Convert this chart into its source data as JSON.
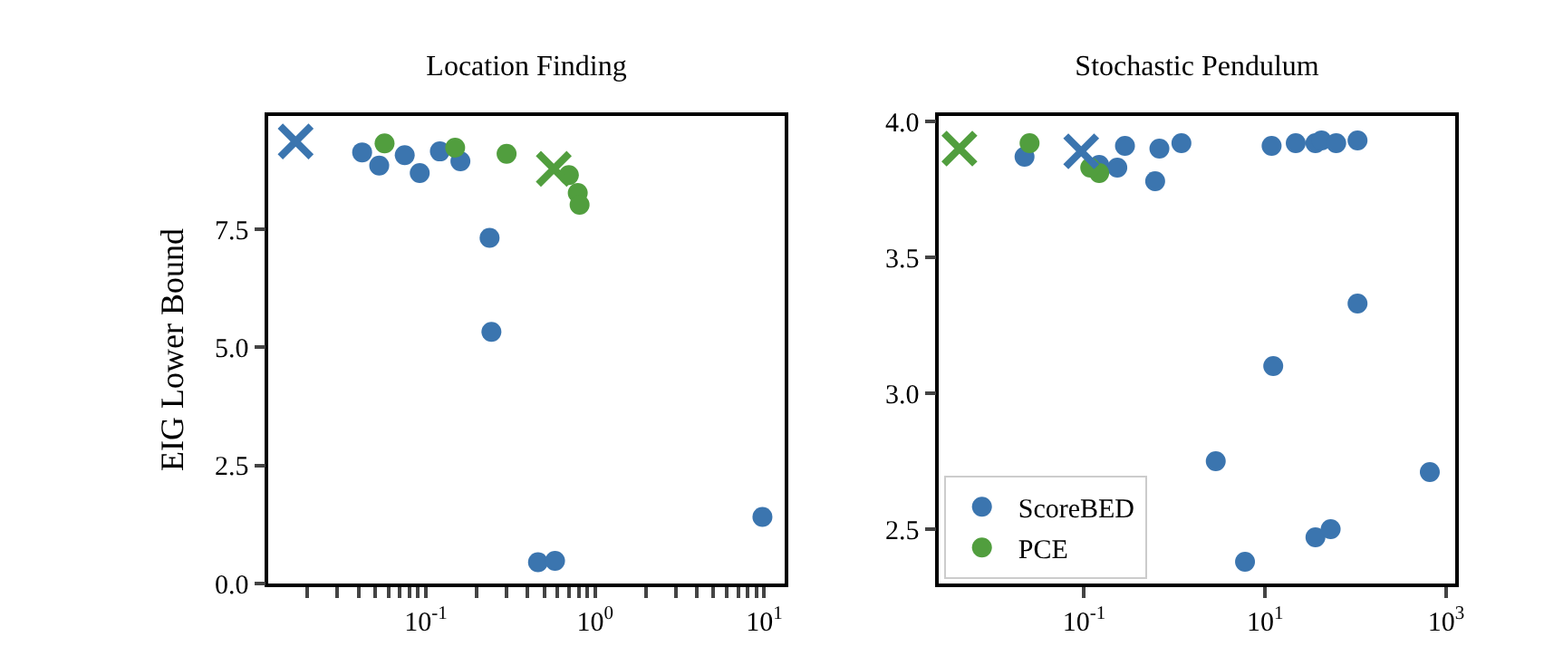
{
  "chart_data": [
    {
      "type": "scatter",
      "title": "Location Finding",
      "ylabel": "EIG Lower Bound",
      "log": "x",
      "xlim": [
        0.0117,
        13.2
      ],
      "ylim": [
        0,
        9.9
      ],
      "yticks": [
        {
          "value": 0,
          "label": "0.0"
        },
        2.5,
        {
          "value": 5,
          "label": "5.0"
        },
        7.5
      ],
      "xticks": [
        {
          "value": 0.02,
          "label": null
        },
        {
          "value": 0.03,
          "label": null
        },
        {
          "value": 0.04,
          "label": null
        },
        {
          "value": 0.05,
          "label": null
        },
        {
          "value": 0.06,
          "label": null
        },
        {
          "value": 0.07,
          "label": null
        },
        {
          "value": 0.08,
          "label": null
        },
        {
          "value": 0.09,
          "label": null
        },
        {
          "value": 0.1,
          "label": "10$^{-1}$"
        },
        {
          "value": 0.2,
          "label": null
        },
        {
          "value": 0.3,
          "label": null
        },
        {
          "value": 0.4,
          "label": null
        },
        {
          "value": 0.5,
          "label": null
        },
        {
          "value": 0.6,
          "label": null
        },
        {
          "value": 0.7,
          "label": null
        },
        {
          "value": 0.8,
          "label": null
        },
        {
          "value": 0.9,
          "label": null
        },
        {
          "value": 1,
          "label": "10$^{0}$"
        },
        {
          "value": 2,
          "label": null
        },
        {
          "value": 3,
          "label": null
        },
        {
          "value": 4,
          "label": null
        },
        {
          "value": 5,
          "label": null
        },
        {
          "value": 6,
          "label": null
        },
        {
          "value": 7,
          "label": null
        },
        {
          "value": 8,
          "label": null
        },
        {
          "value": 9,
          "label": null
        },
        {
          "value": 10,
          "label": "10$^{1}$"
        }
      ],
      "series": [
        {
          "color": "#3b75af",
          "marker": "circle",
          "x": [
            0.042,
            0.053,
            0.075,
            0.092,
            0.121,
            0.16,
            0.238,
            0.244,
            0.46,
            0.58,
            9.75
          ],
          "values": [
            9.13,
            8.85,
            9.07,
            8.69,
            9.15,
            8.94,
            7.32,
            5.33,
            0.45,
            0.48,
            1.41
          ]
        },
        {
          "color": "#519e3e",
          "marker": "circle",
          "x": [
            0.057,
            0.149,
            0.3,
            0.7,
            0.79,
            0.81
          ],
          "values": [
            9.32,
            9.23,
            9.1,
            8.65,
            8.27,
            8.02
          ]
        },
        {
          "color": "#3b75af",
          "marker": "cross",
          "x": [
            0.017
          ],
          "values": [
            9.36
          ]
        },
        {
          "color": "#519e3e",
          "marker": "cross",
          "x": [
            0.57
          ],
          "values": [
            8.78
          ]
        }
      ]
    },
    {
      "type": "scatter",
      "title": "Stochastic Pendulum",
      "log": "x",
      "legend": "bottom left",
      "xlim": [
        0.00248,
        1259
      ],
      "ylim": [
        2.3,
        4.02
      ],
      "yticks": [
        2.5,
        {
          "value": 3,
          "label": "3.0"
        },
        3.5,
        {
          "value": 4,
          "label": "4.0"
        }
      ],
      "xticks": [
        {
          "value": 0.1,
          "label": "10$^{-1}$"
        },
        {
          "value": 10,
          "label": "10$^{1}$"
        },
        {
          "value": 1000,
          "label": "10$^{3}$"
        }
      ],
      "series": [
        {
          "name": "ScoreBED",
          "color": "#3b75af",
          "marker": "circle",
          "x": [
            0.022,
            0.147,
            0.233,
            0.283,
            0.68,
            0.61,
            1.19,
            2.85,
            6.0,
            11.8,
            12.3,
            21.8,
            36,
            36,
            53,
            42,
            61,
            105,
            105,
            660
          ],
          "values": [
            3.87,
            3.84,
            3.83,
            3.91,
            3.9,
            3.78,
            3.92,
            2.75,
            2.38,
            3.91,
            3.1,
            3.92,
            3.92,
            2.47,
            2.5,
            3.93,
            3.92,
            3.93,
            3.33,
            2.71
          ]
        },
        {
          "name": "PCE",
          "color": "#519e3e",
          "marker": "circle",
          "x": [
            0.025,
            0.147,
            0.117
          ],
          "values": [
            3.92,
            3.81,
            3.83
          ]
        },
        {
          "color": "#3b75af",
          "marker": "cross",
          "x": [
            0.093
          ],
          "values": [
            3.89
          ]
        },
        {
          "color": "#519e3e",
          "marker": "cross",
          "x": [
            0.0042
          ],
          "values": [
            3.9
          ]
        }
      ]
    }
  ]
}
